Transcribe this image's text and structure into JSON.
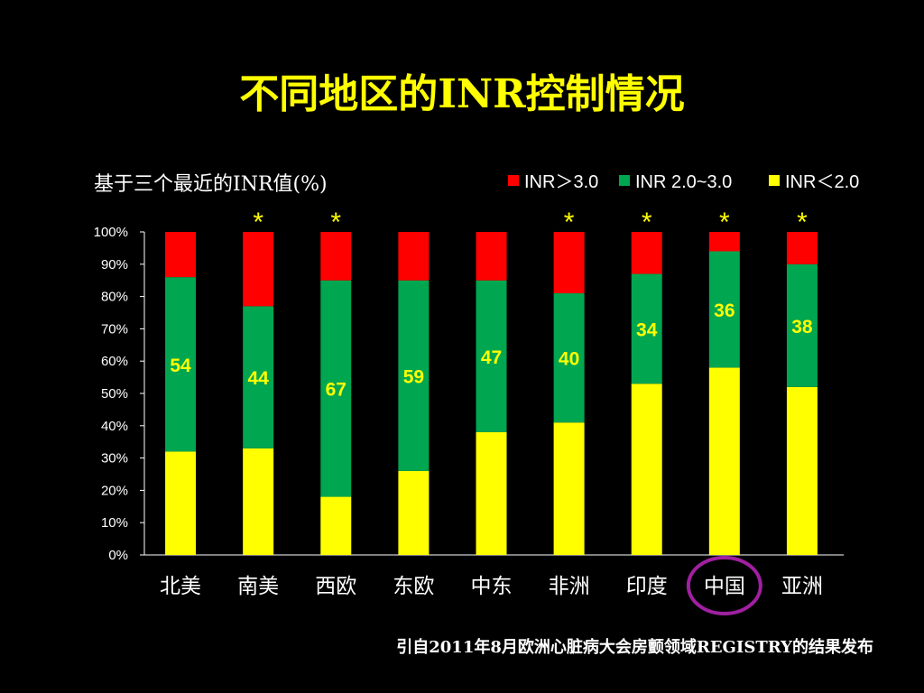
{
  "title": "不同地区的INR控制情况",
  "subtitle": "基于三个最近的INR值(%)",
  "source": "引自2011年8月欧洲心脏病大会房颤领域REGISTRY的结果发布",
  "chart_data": {
    "type": "bar",
    "stacked": true,
    "percent": true,
    "categories": [
      "北美",
      "南美",
      "西欧",
      "东欧",
      "中东",
      "非洲",
      "印度",
      "中国",
      "亚洲"
    ],
    "series": [
      {
        "name": "INR＜2.0",
        "color": "#ffff00",
        "values": [
          32,
          33,
          18,
          26,
          38,
          41,
          53,
          58,
          52
        ]
      },
      {
        "name": "INR 2.0~3.0",
        "color": "#00a650",
        "values": [
          54,
          44,
          67,
          59,
          47,
          40,
          34,
          36,
          38
        ]
      },
      {
        "name": "INR＞3.0",
        "color": "#ff0000",
        "values": [
          14,
          23,
          15,
          15,
          15,
          19,
          13,
          6,
          10
        ]
      }
    ],
    "data_labels": [
      "54",
      "44",
      "67",
      "59",
      "47",
      "40",
      "34",
      "36",
      "38"
    ],
    "significance_marks": [
      "",
      "*",
      "*",
      "",
      "",
      "*",
      "*",
      "*",
      "*"
    ],
    "highlighted_category": "中国",
    "highlight_color": "#a020a0",
    "yticks": [
      "0%",
      "10%",
      "20%",
      "30%",
      "40%",
      "50%",
      "60%",
      "70%",
      "80%",
      "90%",
      "100%"
    ],
    "ylim": [
      0,
      100
    ],
    "legend": [
      {
        "label": "INR＞3.0",
        "color": "#ff0000"
      },
      {
        "label": "INR 2.0~3.0",
        "color": "#00a650"
      },
      {
        "label": "INR＜2.0",
        "color": "#ffff00"
      }
    ],
    "legend_position": "top-right",
    "grid": false
  }
}
